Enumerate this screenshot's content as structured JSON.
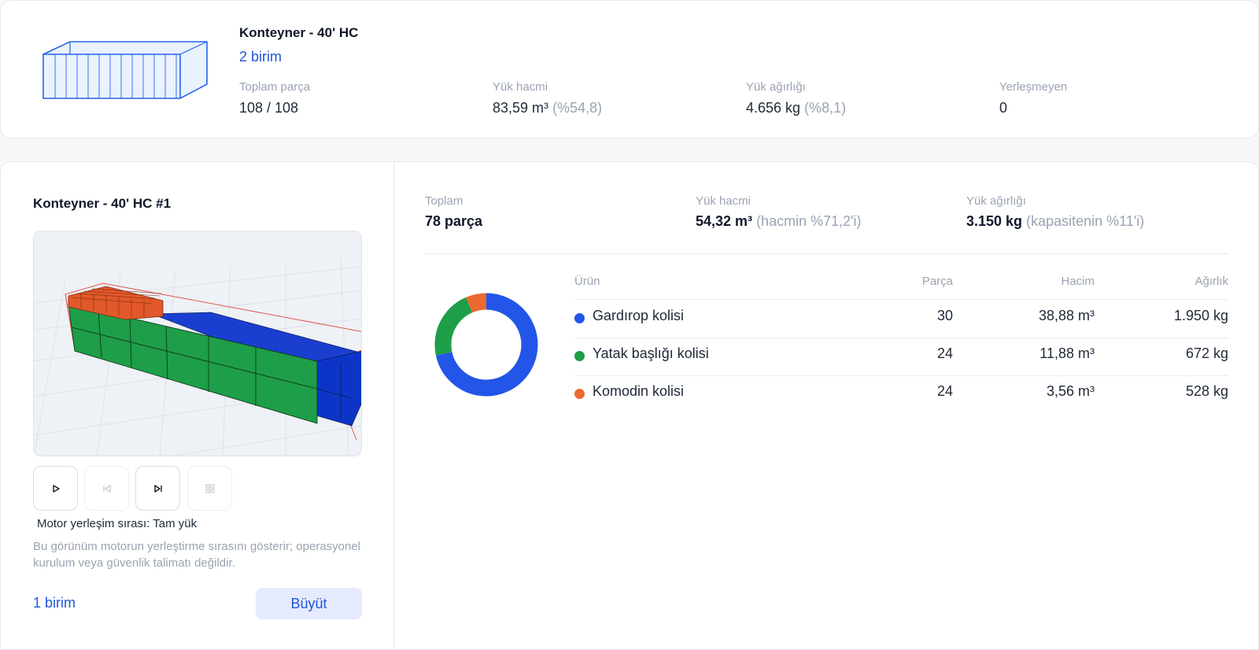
{
  "summary": {
    "title": "Konteyner - 40' HC",
    "units": "2 birim",
    "stats": [
      {
        "label": "Toplam parça",
        "value": "108 / 108",
        "extra": ""
      },
      {
        "label": "Yük hacmi",
        "value": "83,59 m³",
        "extra": "(%54,8)"
      },
      {
        "label": "Yük ağırlığı",
        "value": "4.656 kg",
        "extra": "(%8,1)"
      },
      {
        "label": "Yerleşmeyen",
        "value": "0",
        "extra": ""
      }
    ]
  },
  "container": {
    "title": "Konteyner - 40' HC #1",
    "order_label": "Motor yerleşim sırası: Tam yük",
    "note": "Bu görünüm motorun yerleştirme sırasını gösterir; operasyonel kurulum veya güvenlik talimatı değildir.",
    "units": "1 birim",
    "enlarge_label": "Büyüt",
    "controls": [
      {
        "icon": "play-icon",
        "enabled": true
      },
      {
        "icon": "skip-back-icon",
        "enabled": false
      },
      {
        "icon": "skip-forward-icon",
        "enabled": true
      },
      {
        "icon": "grid-icon",
        "enabled": false
      }
    ]
  },
  "totals": {
    "total_label": "Toplam",
    "total_value": "78 parça",
    "volume_label": "Yük hacmi",
    "volume_value": "54,32 m³",
    "volume_extra": "(hacmin %71,2'i)",
    "weight_label": "Yük ağırlığı",
    "weight_value": "3.150 kg",
    "weight_extra": "(kapasitenin %11'i)"
  },
  "table": {
    "headers": {
      "product": "Ürün",
      "pieces": "Parça",
      "volume": "Hacim",
      "weight": "Ağırlık"
    },
    "rows": [
      {
        "name": "Gardırop kolisi",
        "pieces": "30",
        "volume": "38,88 m³",
        "weight": "1.950 kg",
        "color": "#2356e8",
        "volume_value": 38.88
      },
      {
        "name": "Yatak başlığı kolisi",
        "pieces": "24",
        "volume": "11,88 m³",
        "weight": "672 kg",
        "color": "#1e9e48",
        "volume_value": 11.88
      },
      {
        "name": "Komodin kolisi",
        "pieces": "24",
        "volume": "3,56 m³",
        "weight": "528 kg",
        "color": "#ec6a2f",
        "volume_value": 3.56
      }
    ]
  }
}
